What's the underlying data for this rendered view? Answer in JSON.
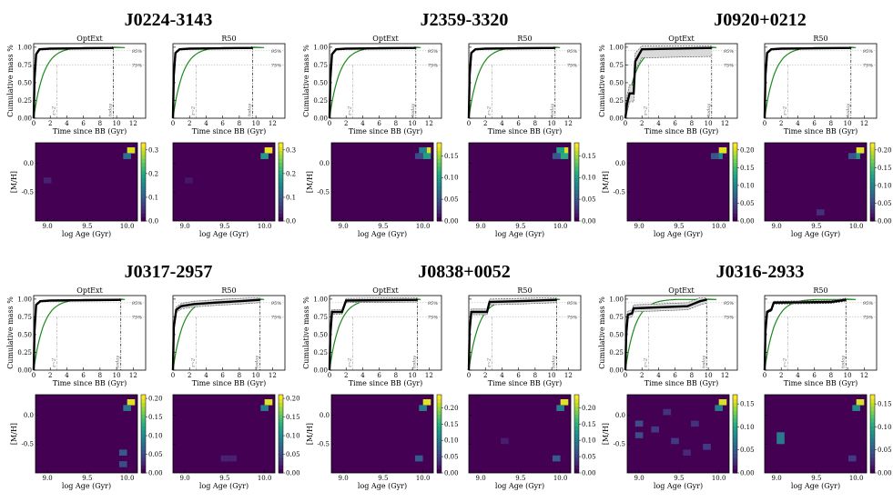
{
  "chart_data": {
    "type": "line",
    "layout": "2 rows x 3 columns of galaxies; each galaxy has a cumulative mass panel (OptExt, R50) above an age-metallicity weight map (OptExt, R50)",
    "panel_columns": [
      "OptExt",
      "R50"
    ],
    "cumulative": {
      "xlabel": "Time since BB (Gyr)",
      "ylabel": "Cumulative mass %",
      "xlim": [
        0,
        13.5
      ],
      "ylim": [
        0,
        1.05
      ],
      "xticks": [
        0,
        2,
        4,
        6,
        8,
        10,
        12
      ],
      "yticks": [
        0.0,
        0.25,
        0.5,
        0.75,
        1.0
      ],
      "ytick_labels": [
        "0.00",
        "0.25",
        "0.50",
        "0.75",
        "1.00"
      ],
      "hlines": [
        {
          "y": 0.95,
          "label": "95%"
        },
        {
          "y": 0.75,
          "label": "75%"
        }
      ],
      "vlines": [
        {
          "x": 2.8,
          "label": "z~2"
        }
      ],
      "green_model_tau": 1.2
    },
    "map": {
      "xlabel": "log Age (Gyr)",
      "ylabel": "[M/H]",
      "xlim": [
        8.85,
        10.13
      ],
      "ylim": [
        -1.0,
        0.35
      ],
      "xticks": [
        9.0,
        9.5,
        10.0
      ],
      "xtick_labels": [
        "9.0",
        "9.5",
        "10.0"
      ],
      "yticks": [
        0.0,
        -0.5
      ],
      "ytick_labels": [
        "0.0",
        "-0.5"
      ],
      "colormap": "viridis",
      "cells": 13
    },
    "galaxies": [
      {
        "name": "J0224-3143",
        "redshift_age": 9.6,
        "now_label": "today",
        "optext": {
          "sfh": [
            [
              0,
              0
            ],
            [
              0.1,
              0.55
            ],
            [
              0.3,
              0.9
            ],
            [
              0.7,
              0.97
            ],
            [
              2.0,
              0.98
            ],
            [
              9.5,
              0.99
            ],
            [
              9.6,
              1.0
            ]
          ],
          "band": 0
        },
        "r50": {
          "sfh": [
            [
              0,
              0
            ],
            [
              0.1,
              0.6
            ],
            [
              0.3,
              0.92
            ],
            [
              0.8,
              0.97
            ],
            [
              2.0,
              0.98
            ],
            [
              9.5,
              0.99
            ],
            [
              9.6,
              1.0
            ]
          ],
          "band": 0
        },
        "optext_map": {
          "vmax": 0.33,
          "cbticks": [
            0.0,
            0.1,
            0.2,
            0.3
          ],
          "cbtick_labels": [
            "0.0",
            "0.1",
            "0.2",
            "0.3"
          ],
          "cells": [
            {
              "age": 10.05,
              "mh": 0.22,
              "w": 0.31
            },
            {
              "age": 10.0,
              "mh": 0.12,
              "w": 0.12
            },
            {
              "age": 9.0,
              "mh": -0.3,
              "w": 0.03
            }
          ]
        },
        "r50_map": {
          "vmax": 0.33,
          "cbticks": [
            0.0,
            0.1,
            0.2,
            0.3
          ],
          "cbtick_labels": [
            "0.0",
            "0.1",
            "0.2",
            "0.3"
          ],
          "cells": [
            {
              "age": 10.05,
              "mh": 0.22,
              "w": 0.32
            },
            {
              "age": 10.0,
              "mh": 0.12,
              "w": 0.18
            },
            {
              "age": 9.05,
              "mh": -0.3,
              "w": 0.02
            }
          ]
        }
      },
      {
        "name": "J2359-3320",
        "redshift_age": 10.4,
        "now_label": "today",
        "optext": {
          "sfh": [
            [
              0,
              0
            ],
            [
              0.1,
              0.55
            ],
            [
              0.3,
              0.9
            ],
            [
              0.8,
              0.97
            ],
            [
              2.0,
              0.98
            ],
            [
              10.3,
              0.99
            ],
            [
              10.4,
              1.0
            ]
          ],
          "band": 0
        },
        "r50": {
          "sfh": [
            [
              0,
              0
            ],
            [
              0.1,
              0.6
            ],
            [
              0.3,
              0.92
            ],
            [
              0.8,
              0.97
            ],
            [
              2.0,
              0.98
            ],
            [
              10.3,
              0.99
            ],
            [
              10.4,
              1.0
            ]
          ],
          "band": 0
        },
        "optext_map": {
          "vmax": 0.18,
          "cbticks": [
            0.0,
            0.05,
            0.1,
            0.15
          ],
          "cbtick_labels": [
            "0.00",
            "0.05",
            "0.10",
            "0.15"
          ],
          "cells": [
            {
              "age": 10.05,
              "mh": 0.22,
              "w": 0.17
            },
            {
              "age": 10.0,
              "mh": 0.22,
              "w": 0.08
            },
            {
              "age": 10.05,
              "mh": 0.12,
              "w": 0.1
            },
            {
              "age": 9.95,
              "mh": 0.12,
              "w": 0.04
            }
          ]
        },
        "r50_map": {
          "vmax": 0.18,
          "cbticks": [
            0.0,
            0.05,
            0.1,
            0.15
          ],
          "cbtick_labels": [
            "0.00",
            "0.05",
            "0.10",
            "0.15"
          ],
          "cells": [
            {
              "age": 10.05,
              "mh": 0.22,
              "w": 0.17
            },
            {
              "age": 10.0,
              "mh": 0.22,
              "w": 0.1
            },
            {
              "age": 10.05,
              "mh": 0.12,
              "w": 0.11
            },
            {
              "age": 9.95,
              "mh": 0.12,
              "w": 0.05
            }
          ]
        }
      },
      {
        "name": "J0920+0212",
        "redshift_age": 10.4,
        "now_label": "today",
        "optext": {
          "sfh": [
            [
              0,
              0
            ],
            [
              0.2,
              0.2
            ],
            [
              0.5,
              0.35
            ],
            [
              1.0,
              0.35
            ],
            [
              1.2,
              0.8
            ],
            [
              2.0,
              0.97
            ],
            [
              10.3,
              0.99
            ],
            [
              10.4,
              1.0
            ]
          ],
          "band": 0.12
        },
        "r50": {
          "sfh": [
            [
              0,
              0
            ],
            [
              0.1,
              0.6
            ],
            [
              0.3,
              0.92
            ],
            [
              0.8,
              0.97
            ],
            [
              2.0,
              0.98
            ],
            [
              10.3,
              0.99
            ],
            [
              10.4,
              1.0
            ]
          ],
          "band": 0
        },
        "optext_map": {
          "vmax": 0.22,
          "cbticks": [
            0.0,
            0.05,
            0.1,
            0.15,
            0.2
          ],
          "cbtick_labels": [
            "0.00",
            "0.05",
            "0.10",
            "0.15",
            "0.20"
          ],
          "cells": [
            {
              "age": 10.05,
              "mh": 0.22,
              "w": 0.21
            },
            {
              "age": 10.0,
              "mh": 0.12,
              "w": 0.1
            },
            {
              "age": 9.95,
              "mh": 0.12,
              "w": 0.06
            }
          ]
        },
        "r50_map": {
          "vmax": 0.22,
          "cbticks": [
            0.0,
            0.05,
            0.1,
            0.15,
            0.2
          ],
          "cbtick_labels": [
            "0.00",
            "0.05",
            "0.10",
            "0.15",
            "0.20"
          ],
          "cells": [
            {
              "age": 10.05,
              "mh": 0.22,
              "w": 0.21
            },
            {
              "age": 10.0,
              "mh": 0.12,
              "w": 0.12
            },
            {
              "age": 9.95,
              "mh": 0.12,
              "w": 0.06
            },
            {
              "age": 9.55,
              "mh": -0.85,
              "w": 0.03
            }
          ]
        }
      },
      {
        "name": "J0317-2957",
        "redshift_age": 10.5,
        "now_label": "today",
        "optext": {
          "sfh": [
            [
              0,
              0
            ],
            [
              0.1,
              0.55
            ],
            [
              0.3,
              0.92
            ],
            [
              0.8,
              0.97
            ],
            [
              2.0,
              0.98
            ],
            [
              10.4,
              0.99
            ],
            [
              10.5,
              1.0
            ]
          ],
          "band": 0
        },
        "r50": {
          "sfh": [
            [
              0,
              0
            ],
            [
              0.1,
              0.6
            ],
            [
              0.4,
              0.85
            ],
            [
              1.0,
              0.9
            ],
            [
              2.5,
              0.93
            ],
            [
              5.0,
              0.95
            ],
            [
              8.0,
              0.97
            ],
            [
              10.4,
              0.99
            ],
            [
              10.5,
              1.0
            ]
          ],
          "band": 0.04
        },
        "optext_map": {
          "vmax": 0.21,
          "cbticks": [
            0.0,
            0.05,
            0.1,
            0.15,
            0.2
          ],
          "cbtick_labels": [
            "0.00",
            "0.05",
            "0.10",
            "0.15",
            "0.20"
          ],
          "cells": [
            {
              "age": 10.05,
              "mh": 0.22,
              "w": 0.2
            },
            {
              "age": 10.0,
              "mh": 0.12,
              "w": 0.08
            },
            {
              "age": 9.95,
              "mh": -0.65,
              "w": 0.06
            },
            {
              "age": 9.95,
              "mh": -0.85,
              "w": 0.05
            }
          ]
        },
        "r50_map": {
          "vmax": 0.21,
          "cbticks": [
            0.0,
            0.05,
            0.1,
            0.15,
            0.2
          ],
          "cbtick_labels": [
            "0.00",
            "0.05",
            "0.10",
            "0.15",
            "0.20"
          ],
          "cells": [
            {
              "age": 10.05,
              "mh": 0.22,
              "w": 0.2
            },
            {
              "age": 10.0,
              "mh": 0.12,
              "w": 0.09
            },
            {
              "age": 9.5,
              "mh": -0.75,
              "w": 0.02
            },
            {
              "age": 9.6,
              "mh": -0.75,
              "w": 0.02
            }
          ]
        }
      },
      {
        "name": "J0838+0052",
        "redshift_age": 10.6,
        "now_label": "today",
        "optext": {
          "sfh": [
            [
              0,
              0
            ],
            [
              0.1,
              0.5
            ],
            [
              0.3,
              0.82
            ],
            [
              1.5,
              0.82
            ],
            [
              2.0,
              0.98
            ],
            [
              10.5,
              0.99
            ],
            [
              10.6,
              1.0
            ]
          ],
          "band": 0.03
        },
        "r50": {
          "sfh": [
            [
              0,
              0
            ],
            [
              0.1,
              0.55
            ],
            [
              0.3,
              0.82
            ],
            [
              2.2,
              0.82
            ],
            [
              2.5,
              0.96
            ],
            [
              6.0,
              0.97
            ],
            [
              10.5,
              0.99
            ],
            [
              10.6,
              1.0
            ]
          ],
          "band": 0.04
        },
        "optext_map": {
          "vmax": 0.24,
          "cbticks": [
            0.0,
            0.05,
            0.1,
            0.15,
            0.2
          ],
          "cbtick_labels": [
            "0.00",
            "0.05",
            "0.10",
            "0.15",
            "0.20"
          ],
          "cells": [
            {
              "age": 10.05,
              "mh": 0.22,
              "w": 0.23
            },
            {
              "age": 10.0,
              "mh": 0.12,
              "w": 0.1
            },
            {
              "age": 9.95,
              "mh": -0.75,
              "w": 0.07
            }
          ]
        },
        "r50_map": {
          "vmax": 0.24,
          "cbticks": [
            0.0,
            0.05,
            0.1,
            0.15,
            0.2
          ],
          "cbtick_labels": [
            "0.00",
            "0.05",
            "0.10",
            "0.15",
            "0.20"
          ],
          "cells": [
            {
              "age": 10.05,
              "mh": 0.22,
              "w": 0.23
            },
            {
              "age": 10.0,
              "mh": 0.12,
              "w": 0.1
            },
            {
              "age": 9.95,
              "mh": -0.75,
              "w": 0.07
            },
            {
              "age": 9.3,
              "mh": -0.45,
              "w": 0.02
            }
          ]
        }
      },
      {
        "name": "J0316-2933",
        "redshift_age": 9.8,
        "now_label": "today",
        "optext": {
          "sfh": [
            [
              0,
              0
            ],
            [
              0.1,
              0.5
            ],
            [
              0.3,
              0.78
            ],
            [
              0.8,
              0.8
            ],
            [
              1.0,
              0.87
            ],
            [
              7.5,
              0.9
            ],
            [
              9.0,
              0.97
            ],
            [
              9.7,
              0.99
            ],
            [
              9.8,
              1.0
            ]
          ],
          "band": 0.05
        },
        "r50": {
          "sfh": [
            [
              0,
              0
            ],
            [
              0.1,
              0.55
            ],
            [
              0.3,
              0.82
            ],
            [
              0.8,
              0.85
            ],
            [
              1.1,
              0.95
            ],
            [
              8.0,
              0.96
            ],
            [
              9.7,
              0.99
            ],
            [
              9.8,
              1.0
            ]
          ],
          "band": 0.02
        },
        "optext_map": {
          "vmax": 0.17,
          "cbticks": [
            0.0,
            0.05,
            0.1,
            0.15
          ],
          "cbtick_labels": [
            "0.00",
            "0.05",
            "0.10",
            "0.15"
          ],
          "cells": [
            {
              "age": 10.05,
              "mh": 0.22,
              "w": 0.16
            },
            {
              "age": 10.0,
              "mh": 0.12,
              "w": 0.07
            },
            {
              "age": 9.0,
              "mh": -0.15,
              "w": 0.04
            },
            {
              "age": 9.0,
              "mh": -0.35,
              "w": 0.04
            },
            {
              "age": 9.2,
              "mh": -0.25,
              "w": 0.03
            },
            {
              "age": 9.45,
              "mh": -0.45,
              "w": 0.03
            },
            {
              "age": 9.7,
              "mh": -0.15,
              "w": 0.025
            },
            {
              "age": 9.85,
              "mh": -0.55,
              "w": 0.03
            },
            {
              "age": 9.35,
              "mh": 0.05,
              "w": 0.025
            },
            {
              "age": 9.6,
              "mh": -0.65,
              "w": 0.02
            }
          ]
        },
        "r50_map": {
          "vmax": 0.17,
          "cbticks": [
            0.0,
            0.05,
            0.1,
            0.15
          ],
          "cbtick_labels": [
            "0.00",
            "0.05",
            "0.10",
            "0.15"
          ],
          "cells": [
            {
              "age": 10.05,
              "mh": 0.22,
              "w": 0.16
            },
            {
              "age": 10.0,
              "mh": 0.12,
              "w": 0.08
            },
            {
              "age": 9.05,
              "mh": -0.35,
              "w": 0.07
            },
            {
              "age": 9.05,
              "mh": -0.45,
              "w": 0.07
            },
            {
              "age": 9.95,
              "mh": -0.75,
              "w": 0.03
            }
          ]
        }
      }
    ]
  }
}
